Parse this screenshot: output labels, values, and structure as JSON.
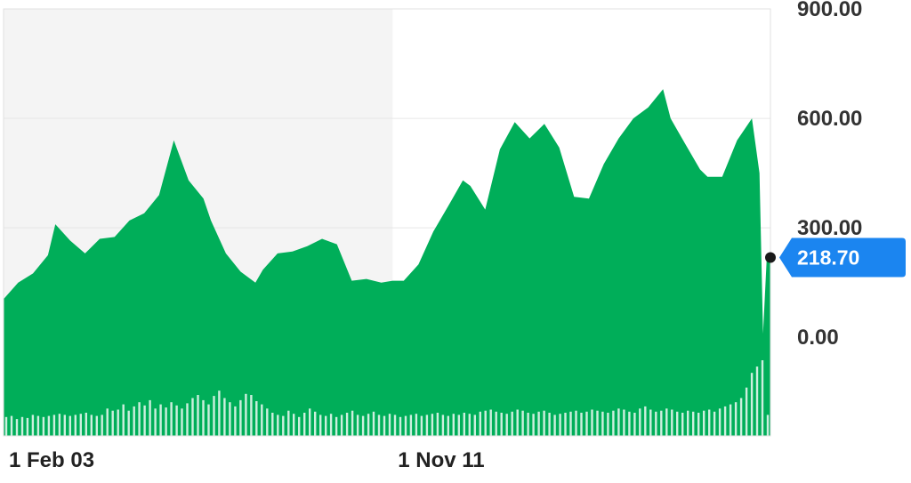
{
  "chart_data": {
    "type": "area",
    "title": "",
    "xlabel": "",
    "ylabel": "",
    "ylim": [
      -270,
      900
    ],
    "y_ticks": [
      "900.00",
      "600.00",
      "300.00",
      "0.00"
    ],
    "y_tick_values": [
      900,
      600,
      300,
      0
    ],
    "x_ticks": [
      {
        "label": "1 Feb 03",
        "date": "2003-02-01"
      },
      {
        "label": "1 Nov 11",
        "date": "2011-11-01"
      }
    ],
    "x_range": [
      "2003-02-01",
      "2020-05-01"
    ],
    "highlighted_period": {
      "from": "2003-02-01",
      "to": "2011-11-01"
    },
    "grid": true,
    "series": [
      {
        "kind": "price_area",
        "x": [
          "2003-02",
          "2003-06",
          "2003-10",
          "2004-02",
          "2004-04",
          "2004-08",
          "2004-12",
          "2005-04",
          "2005-08",
          "2005-12",
          "2006-04",
          "2006-08",
          "2006-12",
          "2007-04",
          "2007-08",
          "2007-10",
          "2008-02",
          "2008-06",
          "2008-10",
          "2008-12",
          "2009-04",
          "2009-08",
          "2009-12",
          "2010-04",
          "2010-08",
          "2010-12",
          "2011-04",
          "2011-08",
          "2011-11",
          "2012-02",
          "2012-06",
          "2012-10",
          "2013-02",
          "2013-06",
          "2013-08",
          "2013-12",
          "2014-04",
          "2014-08",
          "2014-12",
          "2015-04",
          "2015-08",
          "2015-12",
          "2016-04",
          "2016-08",
          "2016-12",
          "2017-04",
          "2017-08",
          "2017-12",
          "2018-02",
          "2018-06",
          "2018-10",
          "2018-12",
          "2019-04",
          "2019-08",
          "2019-12",
          "2020-02",
          "2020-03",
          "2020-04",
          "2020-05"
        ],
        "values": [
          105,
          150,
          175,
          225,
          310,
          265,
          230,
          270,
          275,
          320,
          340,
          390,
          540,
          430,
          380,
          320,
          230,
          180,
          150,
          185,
          230,
          235,
          250,
          270,
          255,
          155,
          160,
          150,
          155,
          155,
          200,
          290,
          360,
          430,
          415,
          350,
          515,
          590,
          545,
          585,
          520,
          385,
          380,
          475,
          545,
          600,
          630,
          680,
          600,
          530,
          460,
          440,
          440,
          540,
          600,
          450,
          10,
          220,
          219
        ]
      },
      {
        "kind": "volume_bars",
        "values": [
          1.8,
          1.9,
          1.6,
          1.8,
          1.7,
          2.0,
          1.9,
          1.8,
          1.9,
          2.0,
          2.1,
          2.0,
          1.9,
          2.0,
          2.1,
          2.2,
          2.0,
          1.9,
          2.0,
          2.6,
          2.4,
          2.5,
          3.0,
          2.4,
          2.8,
          3.2,
          2.9,
          3.4,
          2.6,
          3.0,
          2.7,
          3.2,
          2.9,
          2.6,
          3.1,
          3.6,
          3.9,
          3.4,
          3.0,
          3.8,
          4.3,
          3.6,
          3.2,
          2.8,
          3.4,
          4.0,
          3.9,
          3.3,
          3.0,
          2.6,
          2.2,
          2.0,
          1.9,
          2.4,
          2.1,
          1.8,
          2.2,
          2.6,
          2.3,
          2.0,
          1.9,
          2.1,
          1.8,
          2.0,
          2.2,
          2.4,
          2.0,
          1.9,
          2.1,
          2.3,
          2.0,
          1.9,
          2.1,
          2.0,
          1.8,
          1.9,
          2.0,
          2.1,
          1.9,
          2.0,
          2.1,
          2.2,
          2.0,
          1.9,
          2.1,
          2.0,
          2.2,
          2.1,
          2.0,
          2.3,
          2.4,
          2.5,
          2.3,
          2.2,
          2.1,
          2.3,
          2.5,
          2.4,
          2.2,
          2.1,
          2.3,
          2.4,
          2.2,
          2.0,
          2.1,
          2.2,
          2.3,
          2.4,
          2.2,
          2.3,
          2.5,
          2.4,
          2.3,
          2.2,
          2.4,
          2.6,
          2.5,
          2.3,
          2.2,
          2.6,
          2.8,
          2.5,
          2.3,
          2.4,
          2.6,
          2.5,
          2.3,
          2.2,
          2.4,
          2.3,
          2.2,
          2.4,
          2.5,
          2.3,
          2.6,
          2.8,
          3.0,
          3.2,
          3.6,
          4.6,
          6.0,
          6.6,
          7.2,
          2.0
        ]
      }
    ],
    "last_value": 218.7,
    "last_value_label": "218.70",
    "colors": {
      "area_fill": "#00ae59",
      "volume_bars": "#ffffff",
      "highlight_band": "#f4f4f4",
      "grid": "#e6e6e6",
      "badge": "#1b85f0",
      "tick_text": "#333333",
      "marker": "#1a1a1a"
    }
  }
}
